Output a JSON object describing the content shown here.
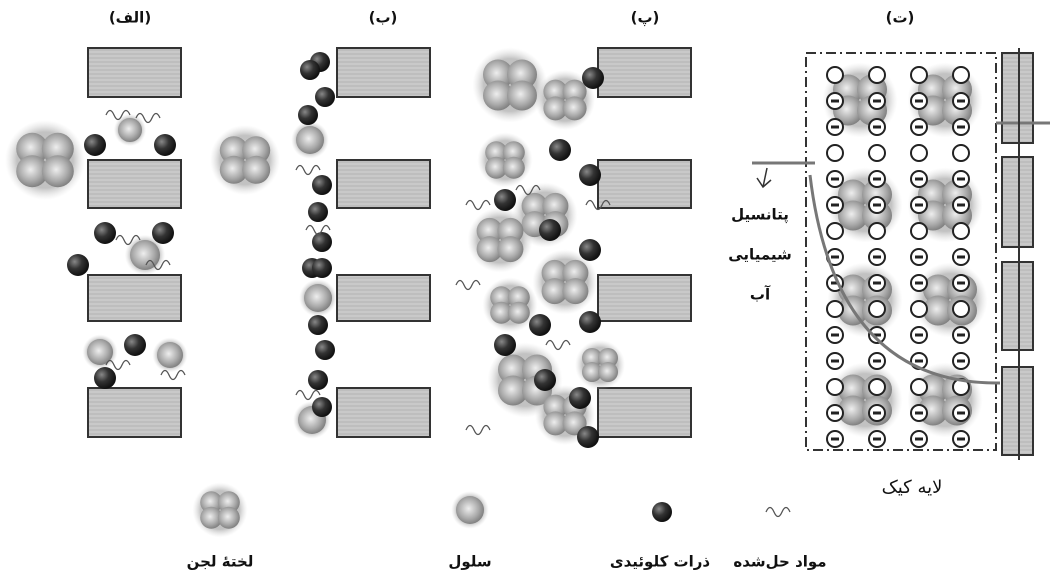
{
  "panels": [
    {
      "label": "(الف)"
    },
    {
      "label": "(ب)"
    },
    {
      "label": "(پ)"
    },
    {
      "label": "(ت)"
    }
  ],
  "annotation": {
    "lines": [
      "پتانسیل",
      "شیمیایی",
      "آب"
    ]
  },
  "cake_label": "لایه کیک",
  "legend": [
    {
      "label": "لختهٔ لجن"
    },
    {
      "label": "سلول"
    },
    {
      "label": "ذرات کلوئیدی"
    },
    {
      "label": "مواد حل‌شده"
    }
  ]
}
